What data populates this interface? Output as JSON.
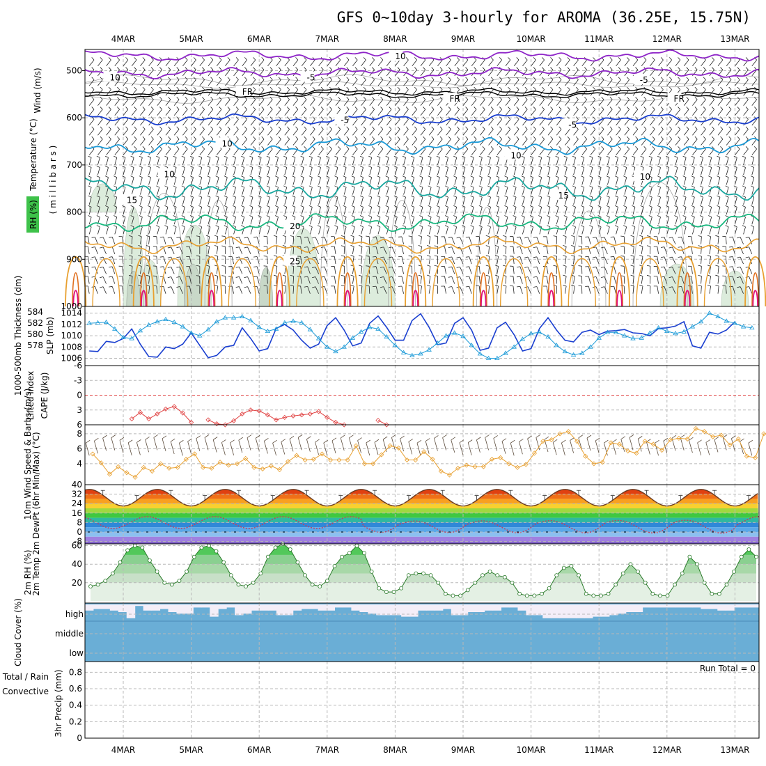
{
  "chart_data": {
    "type": "line",
    "title": "GFS 0~10day 3-hourly for AROMA (36.25E, 15.75N)",
    "dates": [
      "4MAR",
      "5MAR",
      "6MAR",
      "7MAR",
      "8MAR",
      "9MAR",
      "10MAR",
      "11MAR",
      "12MAR",
      "13MAR"
    ],
    "colors": {
      "purple": "#8e24c8",
      "black": "#000000",
      "blue": "#1a3fd0",
      "cyan": "#1a9ad8",
      "teal": "#1aa8a0",
      "green": "#1ab880",
      "orange": "#e8a030",
      "darkorange": "#e07020",
      "magenta": "#e0107a",
      "rhgreen": "#3ec24a",
      "cloud": "#6aaed6",
      "cape": "#c878d8",
      "li": "#e04040"
    },
    "panels": {
      "upper": {
        "ylabel_wind": "Wind (m/s)",
        "ylabel_temp": "Temperature (°C)",
        "ylabel_rh": "RH (%)",
        "ylabel_mb": "( m i l l i b a r s )",
        "pressure_ticks": [
          "500",
          "600",
          "700",
          "800",
          "900",
          "1000"
        ],
        "contour_labels": [
          {
            "text": "-5",
            "day": 2.7,
            "mb": 515,
            "color": "purple"
          },
          {
            "text": "-5",
            "day": 7.6,
            "mb": 520,
            "color": "purple"
          },
          {
            "text": "FR",
            "day": 1.75,
            "mb": 545,
            "color": "black"
          },
          {
            "text": "FR",
            "day": 4.8,
            "mb": 560,
            "color": "black"
          },
          {
            "text": "FR",
            "day": 8.1,
            "mb": 560,
            "color": "black"
          },
          {
            "text": "-5",
            "day": 3.2,
            "mb": 605,
            "color": "blue"
          },
          {
            "text": "-5",
            "day": 6.55,
            "mb": 615,
            "color": "blue"
          },
          {
            "text": "10",
            "day": 1.45,
            "mb": 655,
            "color": "cyan"
          },
          {
            "text": "10",
            "day": 5.7,
            "mb": 680,
            "color": "cyan"
          },
          {
            "text": "15",
            "day": 0.05,
            "mb": 775,
            "color": "teal"
          },
          {
            "text": "15",
            "day": 6.4,
            "mb": 765,
            "color": "teal"
          },
          {
            "text": "20",
            "day": 2.45,
            "mb": 830,
            "color": "green"
          },
          {
            "text": "25",
            "day": 2.45,
            "mb": 905,
            "color": "orange"
          },
          {
            "text": "10",
            "day": 0.6,
            "mb": 720,
            "color": "grey"
          },
          {
            "text": "10",
            "day": 7.6,
            "mb": 725,
            "color": "grey"
          },
          {
            "text": "10",
            "day": -0.2,
            "mb": 515,
            "color": "grey"
          },
          {
            "text": "10",
            "day": 4.0,
            "mb": 470,
            "color": "grey"
          }
        ]
      },
      "slp": {
        "ylabel_thk": "1000-500mb Thickness (dm)",
        "ylabel_slp": "SLP (mb)",
        "thk_ticks": [
          "584",
          "582",
          "580",
          "578"
        ],
        "slp_ticks": [
          "1014",
          "1012",
          "1010",
          "1008",
          "1006"
        ],
        "thickness": [
          1007.3,
          1007.2,
          1009,
          1008.8,
          1009.5,
          1011.2,
          1008.5,
          1006.3,
          1006.2,
          1008,
          1007.7,
          1008.5,
          1010.5,
          1008.3,
          1006.1,
          1006.5,
          1008,
          1008.3,
          1011.4,
          1009.5,
          1007.3,
          1007.7,
          1011.3,
          1012,
          1011,
          1009.2,
          1007.8,
          1008.5,
          1011.8,
          1013.2,
          1011,
          1008.2,
          1008.7,
          1012.2,
          1013.5,
          1011.5,
          1009.2,
          1009.2,
          1012.7,
          1013.9,
          1011.5,
          1008.4,
          1008.7,
          1012.2,
          1013.2,
          1011,
          1007.4,
          1007.8,
          1011.4,
          1012.4,
          1010.2,
          1007.3,
          1007.7,
          1011.3,
          1013.2,
          1011,
          1009.2,
          1008.9,
          1010.6,
          1011,
          1010.2,
          1010.8,
          1010.9,
          1011.1,
          1010.5,
          1010.4,
          1010,
          1011.3,
          1011.4,
          1011.7,
          1012.5,
          1008.2,
          1007.8,
          1010.6,
          1010.3,
          1011,
          1012.5
        ],
        "slp": [
          1012.2,
          1012.3,
          1012.4,
          1011.2,
          1009.7,
          1009.5,
          1010.9,
          1011.9,
          1012.5,
          1012.9,
          1012.4,
          1011.6,
          1010.5,
          1010,
          1011.1,
          1012.5,
          1013.2,
          1013.2,
          1013.4,
          1012.7,
          1011.5,
          1010.8,
          1011.2,
          1012.3,
          1012.6,
          1012.3,
          1011.1,
          1009.5,
          1008,
          1007.2,
          1008,
          1009.6,
          1010.7,
          1011.5,
          1011.2,
          1009.8,
          1008.3,
          1007,
          1006.5,
          1006.8,
          1007.5,
          1008.7,
          1010,
          1010.5,
          1009.9,
          1008.3,
          1006.8,
          1006,
          1006,
          1006.9,
          1008,
          1009.4,
          1010.4,
          1010.6,
          1009.8,
          1008.3,
          1007.2,
          1006.6,
          1006.9,
          1008,
          1009.6,
          1010.6,
          1010.6,
          1010,
          1009.5,
          1009.6,
          1010.5,
          1011.4,
          1010.8,
          1010.4,
          1010.7,
          1011.6,
          1012.5,
          1014,
          1013.4,
          1012.6,
          1012.2,
          1011.6,
          1011.4
        ]
      },
      "cape": {
        "ylabel_li": "Lifted Index",
        "ylabel_cape": "CAPE (J/kg)",
        "ticks": [
          "-6",
          "-3",
          "0",
          "3",
          "6"
        ],
        "li": [
          null,
          null,
          null,
          null,
          null,
          4.8,
          3.5,
          4.8,
          3.8,
          2.8,
          2.3,
          3.6,
          5.5,
          null,
          5,
          5.8,
          6,
          5.2,
          3.8,
          3,
          3.2,
          4,
          5,
          4.5,
          4.2,
          4,
          3.8,
          3.3,
          4.5,
          5.5,
          6,
          null,
          null,
          null,
          5.1,
          6,
          null,
          null,
          null,
          null,
          null,
          null,
          null,
          null,
          null,
          null,
          null,
          null,
          null,
          null,
          null,
          null,
          null,
          null,
          null,
          null,
          null,
          null,
          null,
          null,
          null,
          null,
          null,
          null,
          null,
          null,
          null,
          null,
          null,
          null,
          null,
          null,
          null,
          null,
          null,
          null,
          null,
          null
        ]
      },
      "wind": {
        "ylabel": "10m Wind Speed & Barbs (m/s)",
        "ticks": [
          "8",
          "6",
          "4"
        ],
        "speed": [
          5.3,
          4.1,
          2.6,
          3.6,
          2.8,
          2.2,
          3.5,
          3,
          4,
          3.4,
          3.5,
          4.6,
          5.3,
          3.5,
          3.4,
          4.2,
          3.8,
          4,
          4.7,
          3.5,
          3.3,
          3.7,
          3.2,
          4.3,
          5.1,
          4.5,
          4.6,
          5.3,
          4.5,
          4.5,
          4.5,
          6.4,
          4,
          4,
          5.2,
          6.4,
          6.1,
          4.5,
          4.5,
          5.6,
          4.6,
          3,
          2.5,
          3.4,
          3.8,
          3.6,
          3.6,
          4.6,
          4.8,
          4,
          3.5,
          3.9,
          5.4,
          7,
          7.2,
          8,
          8.3,
          7,
          5,
          4,
          4.2,
          6.8,
          6.6,
          5.7,
          5.4,
          7,
          6.6,
          5.8,
          7.2,
          7.4,
          7.3,
          8.7,
          8.3,
          7.6,
          7.8,
          6.5,
          7.3,
          5,
          4.8,
          8,
          7.9,
          5,
          4,
          3.6
        ]
      },
      "temp": {
        "ylabel": "2m Temp 2m DewPt (6hr Min/Max) (°C)",
        "ticks": [
          "40",
          "32",
          "24",
          "16",
          "8",
          "0",
          "-8"
        ]
      },
      "rh": {
        "ylabel": "2m RH (%)",
        "ticks": [
          "60",
          "40",
          "20"
        ],
        "values": [
          16,
          18,
          22,
          30,
          42,
          55,
          60,
          58,
          44,
          32,
          20,
          18,
          22,
          32,
          48,
          58,
          60,
          54,
          42,
          28,
          18,
          16,
          20,
          30,
          48,
          58,
          62,
          56,
          42,
          28,
          18,
          16,
          22,
          38,
          48,
          52,
          60,
          52,
          32,
          14,
          10,
          10,
          14,
          28,
          30,
          30,
          28,
          20,
          8,
          6,
          6,
          12,
          20,
          28,
          32,
          28,
          26,
          20,
          8,
          6,
          6,
          8,
          14,
          28,
          36,
          38,
          28,
          8,
          6,
          6,
          8,
          18,
          30,
          40,
          32,
          20,
          8,
          6,
          6,
          18,
          30,
          48,
          40,
          20,
          8,
          8,
          18,
          32,
          48,
          56,
          48
        ]
      },
      "cloud": {
        "ylabel": "Cloud Cover (%)",
        "levels": [
          "high",
          "middle",
          "low"
        ],
        "high": [
          60,
          70,
          70,
          60,
          50,
          10,
          90,
          60,
          60,
          70,
          50,
          40,
          40,
          80,
          80,
          20,
          70,
          80,
          30,
          40,
          60,
          60,
          60,
          30,
          30,
          60,
          70,
          70,
          60,
          60,
          80,
          80,
          60,
          50,
          40,
          30,
          30,
          30,
          20,
          20,
          60,
          60,
          60,
          70,
          30,
          30,
          50,
          50,
          60,
          60,
          80,
          80,
          60,
          30,
          30,
          10,
          10,
          10,
          10,
          10,
          10,
          20,
          20,
          30,
          40,
          50,
          50,
          80,
          80,
          80,
          80,
          80,
          80,
          80,
          70,
          70,
          60,
          60,
          80,
          80,
          80
        ]
      },
      "precip": {
        "ylabel": "3hr Precip (mm)",
        "legend_total": "Total / Rain",
        "legend_conv": "Convective",
        "ticks": [
          "0.8",
          "0.6",
          "0.4",
          "0.2",
          "0"
        ],
        "run_total_label": "Run Total = 0"
      }
    }
  }
}
